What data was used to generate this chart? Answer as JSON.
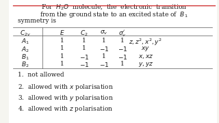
{
  "bg_color": "#f5f5f0",
  "content_bg": "#ffffff",
  "title_line1": "For  $H_2O$  molecule,  the  electronic  transition",
  "title_line2": "from the ground state to an excited state of  $B_1$",
  "title_line3": "symmetry is",
  "table_header": [
    "$C_{2v}$",
    "$E$",
    "$C_2$",
    "$\\sigma_v$",
    "$\\sigma_v'$",
    ""
  ],
  "table_rows": [
    [
      "$A_1$",
      "1",
      "1",
      "1",
      "1",
      "$z, z^2, x^2, y^2$"
    ],
    [
      "$A_2$",
      "1",
      "1",
      "$-1$",
      "$-1$",
      "$xy$"
    ],
    [
      "$B_1$",
      "1",
      "$-1$",
      "1",
      "$-1$",
      "$x, xz$"
    ],
    [
      "$B_2$",
      "1",
      "$-1$",
      "$-1$",
      "1",
      "$y, yz$"
    ]
  ],
  "options": [
    "1.  not allowed",
    "2.  allowed with $x$ polarisation",
    "3.  allowed with $y$ polarisation",
    "4.  allowed with $z$ polarisation"
  ],
  "underline_color": "#cc2222",
  "text_color": "#1a1a1a",
  "line_color": "#555555",
  "font_size": 6.5
}
